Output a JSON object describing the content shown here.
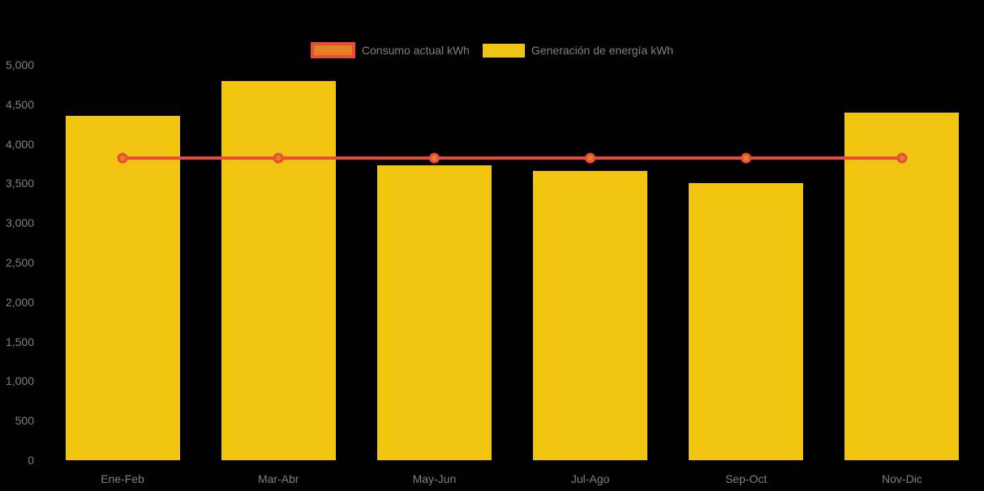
{
  "legend": {
    "items": [
      {
        "label": "Consumo actual kWh",
        "swatch": "line-marker",
        "fill": "#E67E22",
        "border": "#E74C3C"
      },
      {
        "label": "Generación de energía kWh",
        "swatch": "bar",
        "fill": "#F1C40F"
      }
    ]
  },
  "chart_data": {
    "type": "bar",
    "title": "",
    "xlabel": "",
    "ylabel": "",
    "categories": [
      "Ene-Feb",
      "Mar-Abr",
      "May-Jun",
      "Jul-Ago",
      "Sep-Oct",
      "Nov-Dic"
    ],
    "series": [
      {
        "name": "Generación de energía kWh",
        "type": "bar",
        "color": "#F1C40F",
        "values": [
          4355,
          4790,
          3730,
          3660,
          3500,
          4400
        ]
      },
      {
        "name": "Consumo actual kWh",
        "type": "line",
        "color": "#E74C3C",
        "marker_fill": "#E67E22",
        "values": [
          3820,
          3820,
          3820,
          3820,
          3820,
          3820
        ]
      }
    ],
    "ylim": [
      0,
      5000
    ],
    "ytick_step": 500,
    "ytick_labels": [
      "0",
      "500",
      "1,000",
      "1,500",
      "2,000",
      "2,500",
      "3,000",
      "3,500",
      "4,000",
      "4,500",
      "5,000"
    ],
    "grid": false,
    "legend_position": "top-center",
    "background": "#000000",
    "text_color": "#808080"
  }
}
